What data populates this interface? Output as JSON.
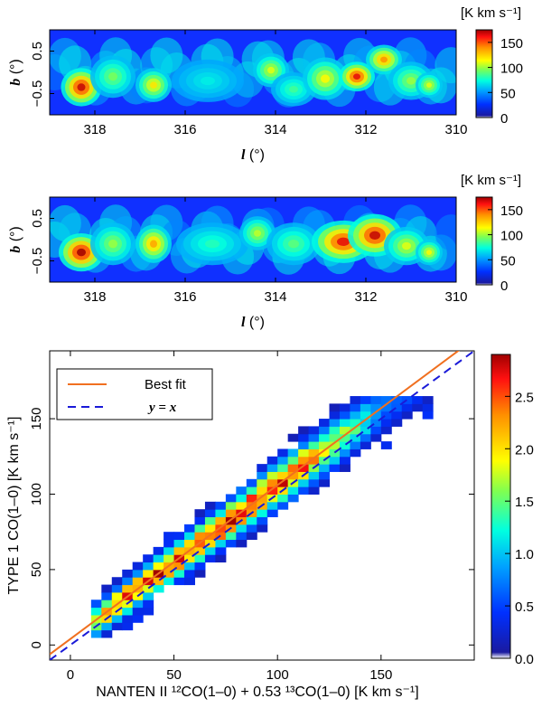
{
  "chart_data": [
    {
      "type": "heatmap",
      "panel": "top",
      "colorbar_label": "[K km s⁻¹]",
      "colorbar_ticks": [
        "150",
        "100",
        "50",
        "0"
      ],
      "colorbar_range": [
        0,
        175
      ],
      "xlabel_symbol": "l",
      "xlabel_unit": " (°)",
      "ylabel_symbol": "b",
      "ylabel_unit": " (°)",
      "x_ticks": [
        "318",
        "316",
        "314",
        "312",
        "310"
      ],
      "y_ticks": [
        "0.5",
        "−0.5"
      ],
      "xlim": [
        319,
        310
      ],
      "ylim": [
        -1,
        1
      ],
      "blobs": [
        {
          "l": 318.3,
          "b": -0.35,
          "w": 0.45,
          "h": 0.45,
          "v": 170
        },
        {
          "l": 317.6,
          "b": -0.1,
          "w": 0.5,
          "h": 0.5,
          "v": 95
        },
        {
          "l": 316.7,
          "b": -0.3,
          "w": 0.4,
          "h": 0.4,
          "v": 120
        },
        {
          "l": 315.5,
          "b": -0.2,
          "w": 0.8,
          "h": 0.5,
          "v": 70
        },
        {
          "l": 314.1,
          "b": 0.05,
          "w": 0.4,
          "h": 0.4,
          "v": 110
        },
        {
          "l": 313.6,
          "b": -0.4,
          "w": 0.5,
          "h": 0.4,
          "v": 85
        },
        {
          "l": 312.9,
          "b": -0.15,
          "w": 0.5,
          "h": 0.5,
          "v": 115
        },
        {
          "l": 312.2,
          "b": -0.1,
          "w": 0.4,
          "h": 0.35,
          "v": 165
        },
        {
          "l": 311.6,
          "b": 0.3,
          "w": 0.4,
          "h": 0.35,
          "v": 140
        },
        {
          "l": 311.0,
          "b": -0.2,
          "w": 0.5,
          "h": 0.45,
          "v": 100
        },
        {
          "l": 310.6,
          "b": -0.3,
          "w": 0.3,
          "h": 0.3,
          "v": 110
        }
      ]
    },
    {
      "type": "heatmap",
      "panel": "middle",
      "colorbar_label": "[K km s⁻¹]",
      "colorbar_ticks": [
        "150",
        "100",
        "50",
        "0"
      ],
      "colorbar_range": [
        0,
        175
      ],
      "xlabel_symbol": "l",
      "xlabel_unit": " (°)",
      "ylabel_symbol": "b",
      "ylabel_unit": " (°)",
      "x_ticks": [
        "318",
        "316",
        "314",
        "312",
        "310"
      ],
      "y_ticks": [
        "0.5",
        "−0.5"
      ],
      "xlim": [
        319,
        310
      ],
      "ylim": [
        -1,
        1
      ],
      "blobs": [
        {
          "l": 318.3,
          "b": -0.3,
          "w": 0.5,
          "h": 0.45,
          "v": 175
        },
        {
          "l": 317.6,
          "b": -0.1,
          "w": 0.5,
          "h": 0.5,
          "v": 100
        },
        {
          "l": 316.7,
          "b": -0.1,
          "w": 0.4,
          "h": 0.45,
          "v": 135
        },
        {
          "l": 315.4,
          "b": -0.1,
          "w": 0.8,
          "h": 0.5,
          "v": 80
        },
        {
          "l": 314.4,
          "b": 0.15,
          "w": 0.4,
          "h": 0.4,
          "v": 105
        },
        {
          "l": 313.6,
          "b": -0.1,
          "w": 0.6,
          "h": 0.5,
          "v": 90
        },
        {
          "l": 312.5,
          "b": -0.05,
          "w": 0.7,
          "h": 0.5,
          "v": 165
        },
        {
          "l": 311.8,
          "b": 0.1,
          "w": 0.6,
          "h": 0.5,
          "v": 170
        },
        {
          "l": 311.1,
          "b": -0.15,
          "w": 0.5,
          "h": 0.45,
          "v": 110
        },
        {
          "l": 310.6,
          "b": -0.3,
          "w": 0.3,
          "h": 0.3,
          "v": 115
        }
      ]
    },
    {
      "type": "scatter",
      "panel": "bottom",
      "title": "",
      "xlabel": "NANTEN II ¹²CO(1–0) + 0.53 ¹³CO(1–0) [K km s⁻¹]",
      "ylabel": "TYPE 1 CO(1–0) [K km s⁻¹]",
      "xlim": [
        -10,
        195
      ],
      "ylim": [
        -10,
        195
      ],
      "x_ticks": [
        "0",
        "50",
        "100",
        "150"
      ],
      "y_ticks": [
        "0",
        "50",
        "100",
        "150"
      ],
      "colorbar_ticks": [
        "0.0",
        "0.5",
        "1.0",
        "1.5",
        "2.0",
        "2.5"
      ],
      "colorbar_range": [
        0,
        2.9
      ],
      "legend": [
        {
          "label": "Best fit",
          "color": "#f07020",
          "style": "solid"
        },
        {
          "label": "y = x",
          "color": "#1a1ad8",
          "style": "dashed"
        }
      ],
      "best_fit": {
        "slope": 1.02,
        "intercept": 4
      },
      "identity": {
        "slope": 1.0,
        "intercept": 0
      }
    }
  ]
}
